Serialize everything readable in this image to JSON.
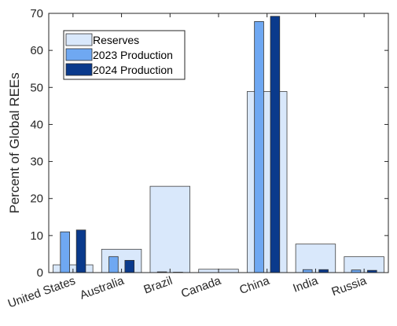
{
  "chart_data": {
    "type": "bar",
    "categories": [
      "United States",
      "Australia",
      "Brazil",
      "Canada",
      "China",
      "India",
      "Russia"
    ],
    "series": [
      {
        "name": "Reserves",
        "values": [
          2.1,
          6.3,
          23.3,
          0.9,
          48.9,
          7.7,
          4.3
        ],
        "color": "#d9e8fb"
      },
      {
        "name": "2023 Production",
        "values": [
          11.0,
          4.3,
          0.2,
          0.0,
          67.8,
          0.8,
          0.7
        ],
        "color": "#6fa8f2"
      },
      {
        "name": "2024 Production",
        "values": [
          11.5,
          3.3,
          0.1,
          0.0,
          69.2,
          0.8,
          0.6
        ],
        "color": "#0a3a8c"
      }
    ],
    "ylabel": "Percent of Global REEs",
    "xlabel": "",
    "title": "",
    "ylim": [
      0,
      70
    ],
    "yticks": [
      0,
      10,
      20,
      30,
      40,
      50,
      60,
      70
    ],
    "grid": false,
    "legend_position": "top-left"
  }
}
